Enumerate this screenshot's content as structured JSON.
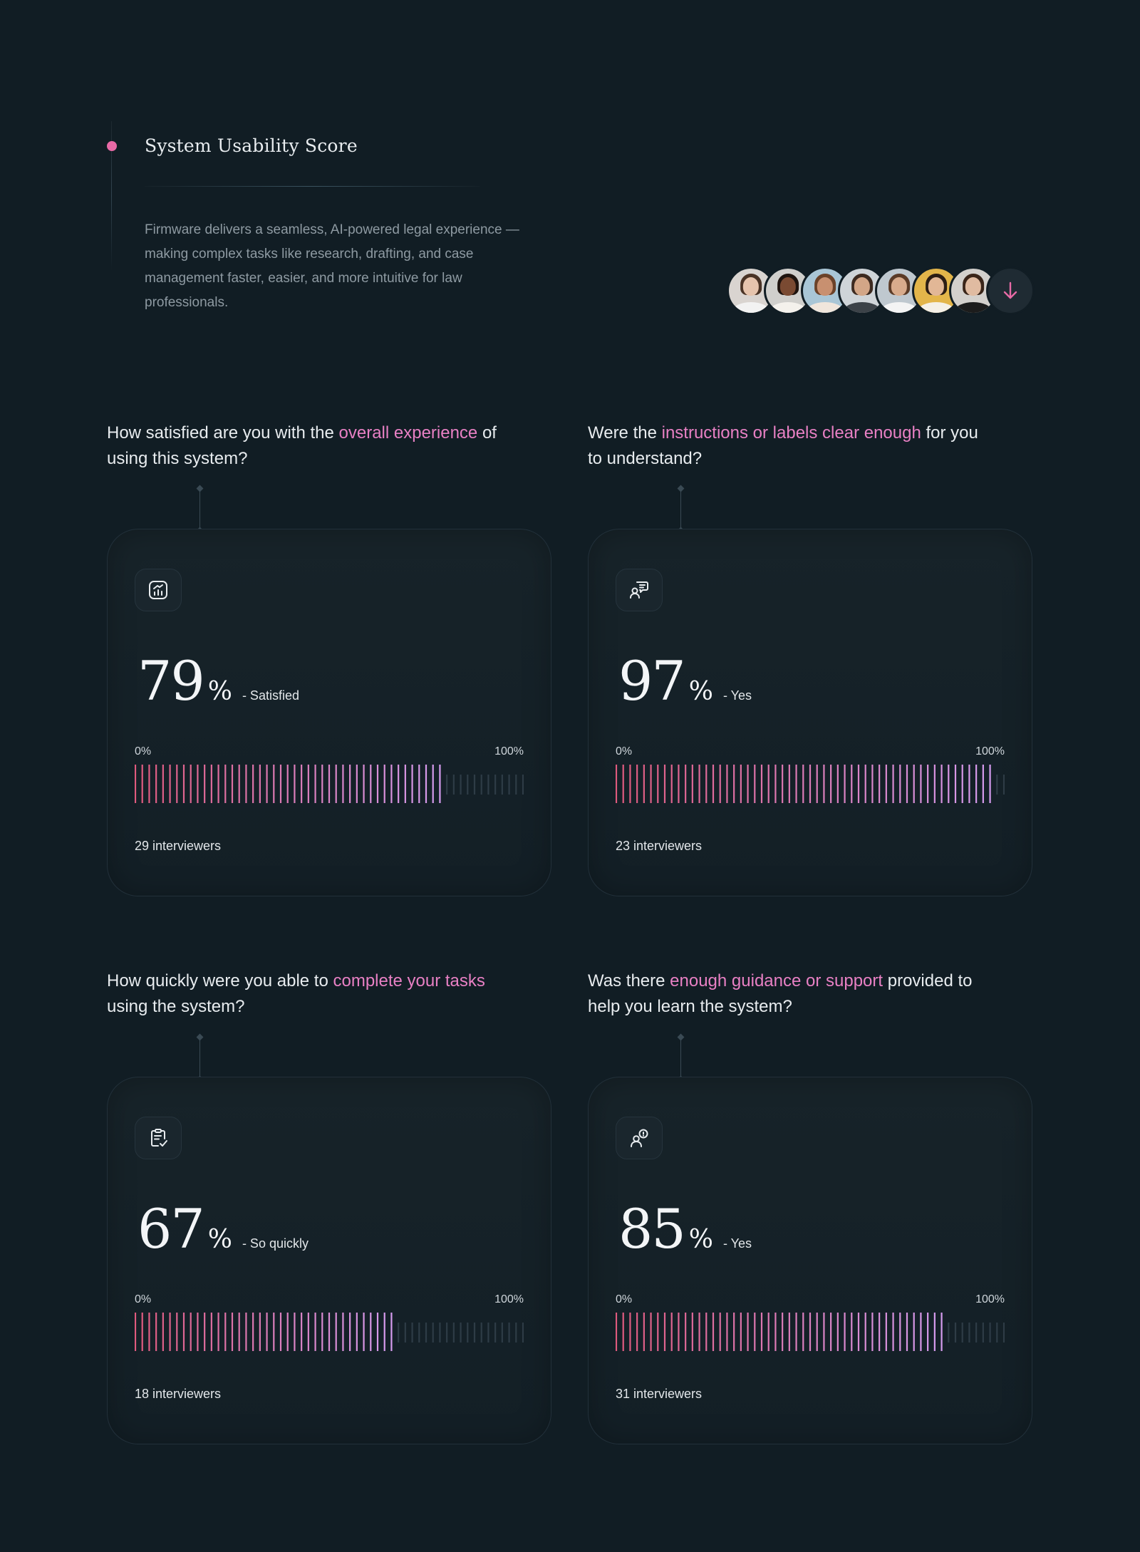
{
  "header": {
    "title": "System Usability Score",
    "description": "Firmware delivers a seamless, AI-powered legal experience —making complex tasks like research, drafting, and case management faster, easier, and more intuitive for law professionals."
  },
  "avatars": [
    {
      "bg": "#d9d4d0",
      "skin": "#e6c4ad",
      "hair": "#4a3325",
      "shirt": "#f2f2f2"
    },
    {
      "bg": "#d0cfcc",
      "skin": "#7a4a32",
      "hair": "#1f140f",
      "shirt": "#f4f1ec"
    },
    {
      "bg": "#a9c6d6",
      "skin": "#c89070",
      "hair": "#6b4229",
      "shirt": "#f0e6dc"
    },
    {
      "bg": "#cfd4d8",
      "skin": "#d3a687",
      "hair": "#3d2a20",
      "shirt": "#3c4248"
    },
    {
      "bg": "#bfc8cf",
      "skin": "#d8ab8c",
      "hair": "#5b3b27",
      "shirt": "#f4f4f4"
    },
    {
      "bg": "#e3b54a",
      "skin": "#e2b796",
      "hair": "#2c1d14",
      "shirt": "#f5f0e7"
    },
    {
      "bg": "#d3d0cc",
      "skin": "#e0bba1",
      "hair": "#3a2519",
      "shirt": "#1c1c1c"
    }
  ],
  "colors": {
    "accent": "#e880c4",
    "bar_start": "#e05a7e",
    "bar_end": "#d79cf0",
    "bar_empty": "#2e3c46"
  },
  "cards": [
    {
      "question_before": "How satisfied are you with the ",
      "question_highlight": "overall experience",
      "question_after": " of using this system?",
      "icon": "chart-icon",
      "value": "79",
      "unit": "%",
      "label": "- Satisfied",
      "percent": 79,
      "scale_min": "0%",
      "scale_max": "100%",
      "count": "29 interviewers"
    },
    {
      "question_before": "Were the ",
      "question_highlight": "instructions or labels clear enough",
      "question_after": " for you to understand?",
      "icon": "user-speech-icon",
      "value": "97",
      "unit": "%",
      "label": "- Yes",
      "percent": 97,
      "scale_min": "0%",
      "scale_max": "100%",
      "count": "23 interviewers"
    },
    {
      "question_before": "How quickly were you able to ",
      "question_highlight": "complete your tasks",
      "question_after": " using the system?",
      "icon": "clipboard-check-icon",
      "value": "67",
      "unit": "%",
      "label": "- So quickly",
      "percent": 67,
      "scale_min": "0%",
      "scale_max": "100%",
      "count": "18 interviewers"
    },
    {
      "question_before": "Was there ",
      "question_highlight": "enough guidance or support",
      "question_after": " provided to help you learn the system?",
      "icon": "user-support-icon",
      "value": "85",
      "unit": "%",
      "label": "- Yes",
      "percent": 85,
      "scale_min": "0%",
      "scale_max": "100%",
      "count": "31 interviewers"
    }
  ]
}
